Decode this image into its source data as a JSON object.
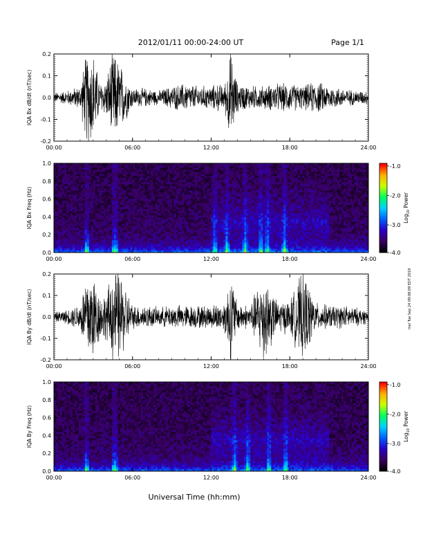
{
  "header": {
    "title": "2012/01/11  00:00-24:00 UT",
    "page": "Page 1/1"
  },
  "footer": {
    "xlabel": "Universal Time (hh:mm)",
    "side_note": "mel Tue Sep 24 09:08:09 EDT 2019"
  },
  "colorbar": {
    "ticks": [
      "-1.0",
      "-2.0",
      "-3.0",
      "-4.0"
    ],
    "label": "Log10 Power",
    "label_main": "Log",
    "label_sub": "10",
    "label_rest": " Power",
    "colors": [
      "#000000",
      "#3a0060",
      "#2a00c8",
      "#0060ff",
      "#00d0ff",
      "#00ff60",
      "#c8ff00",
      "#ffb000",
      "#ff0000"
    ]
  },
  "chart_data": [
    {
      "type": "line",
      "ylabel": "IQA Bx dB/dt (nT/sec)",
      "xticks": [
        "00:00",
        "06:00",
        "12:00",
        "18:00",
        "24:00"
      ],
      "yticks": [
        "0.2",
        "0.1",
        "0.0",
        "-0.1",
        "-0.2"
      ],
      "xlim": [
        0,
        24
      ],
      "ylim": [
        -0.2,
        0.2
      ],
      "envelope_hours": [
        0,
        1,
        2,
        2.5,
        3,
        3.5,
        4,
        4.5,
        5,
        6,
        7,
        8,
        9,
        10,
        11,
        12,
        12.5,
        13,
        13.5,
        14,
        15,
        16,
        17,
        18,
        19,
        20,
        21,
        22,
        23,
        24
      ],
      "envelope_amp": [
        0.02,
        0.03,
        0.05,
        0.2,
        0.2,
        0.06,
        0.08,
        0.2,
        0.15,
        0.04,
        0.04,
        0.03,
        0.05,
        0.06,
        0.05,
        0.05,
        0.06,
        0.05,
        0.2,
        0.06,
        0.05,
        0.05,
        0.06,
        0.06,
        0.05,
        0.07,
        0.05,
        0.04,
        0.03,
        0.03
      ]
    },
    {
      "type": "heatmap",
      "ylabel": "IQA Bx Freq (Hz)",
      "xticks": [
        "00:00",
        "06:00",
        "12:00",
        "18:00",
        "24:00"
      ],
      "yticks": [
        "1.0",
        "0.8",
        "0.6",
        "0.4",
        "0.2",
        "0.0"
      ],
      "xlim": [
        0,
        24
      ],
      "ylim": [
        0,
        1.0
      ],
      "clim": [
        -4.0,
        -1.0
      ]
    },
    {
      "type": "line",
      "ylabel": "IQA By dB/dt (nT/sec)",
      "xticks": [
        "00:00",
        "06:00",
        "12:00",
        "18:00",
        "24:00"
      ],
      "yticks": [
        "0.2",
        "0.1",
        "0.0",
        "-0.1",
        "-0.2"
      ],
      "xlim": [
        0,
        24
      ],
      "ylim": [
        -0.2,
        0.2
      ],
      "envelope_hours": [
        0,
        1,
        2,
        2.5,
        3,
        3.5,
        4,
        4.5,
        5,
        6,
        7,
        8,
        9,
        10,
        11,
        12,
        12.5,
        13,
        13.5,
        14,
        15,
        16,
        17,
        18,
        19,
        20,
        21,
        22,
        23,
        24
      ],
      "envelope_amp": [
        0.02,
        0.03,
        0.06,
        0.2,
        0.2,
        0.1,
        0.1,
        0.2,
        0.2,
        0.05,
        0.05,
        0.04,
        0.05,
        0.05,
        0.05,
        0.05,
        0.06,
        0.06,
        0.2,
        0.06,
        0.05,
        0.2,
        0.07,
        0.07,
        0.2,
        0.06,
        0.05,
        0.05,
        0.04,
        0.03
      ]
    },
    {
      "type": "heatmap",
      "ylabel": "IQA By Freq (Hz)",
      "xticks": [
        "00:00",
        "06:00",
        "12:00",
        "18:00",
        "24:00"
      ],
      "yticks": [
        "1.0",
        "0.8",
        "0.6",
        "0.4",
        "0.2",
        "0.0"
      ],
      "xlim": [
        0,
        24
      ],
      "ylim": [
        0,
        1.0
      ],
      "clim": [
        -4.0,
        -1.0
      ]
    }
  ]
}
